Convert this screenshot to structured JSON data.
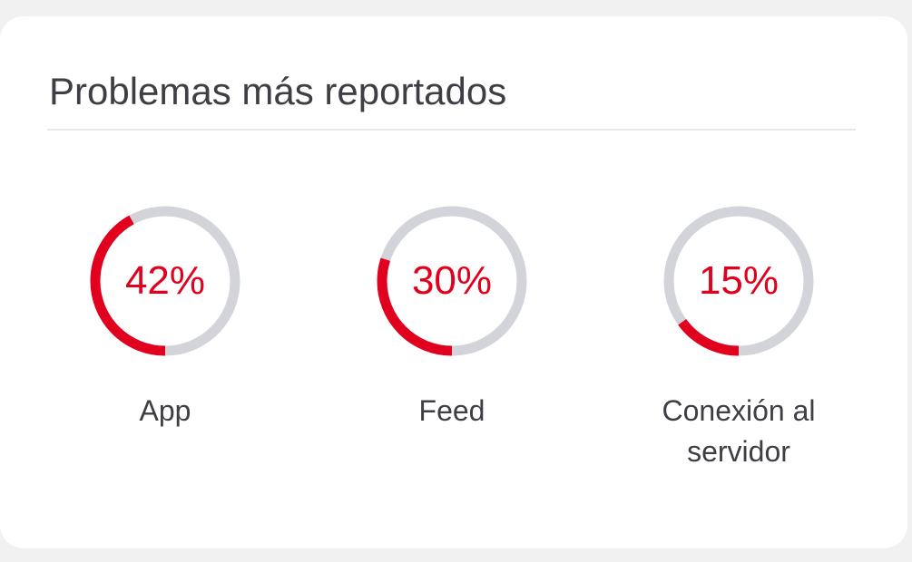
{
  "card": {
    "title": "Problemas más reportados"
  },
  "colors": {
    "accent": "#e1001e",
    "track": "#d2d4da",
    "text": "#3e3e44"
  },
  "stats": [
    {
      "label": "App",
      "percent_text": "42%",
      "value": 0.42
    },
    {
      "label": "Feed",
      "percent_text": "30%",
      "value": 0.3
    },
    {
      "label": "Conexión al servidor",
      "percent_text": "15%",
      "value": 0.15
    }
  ]
}
